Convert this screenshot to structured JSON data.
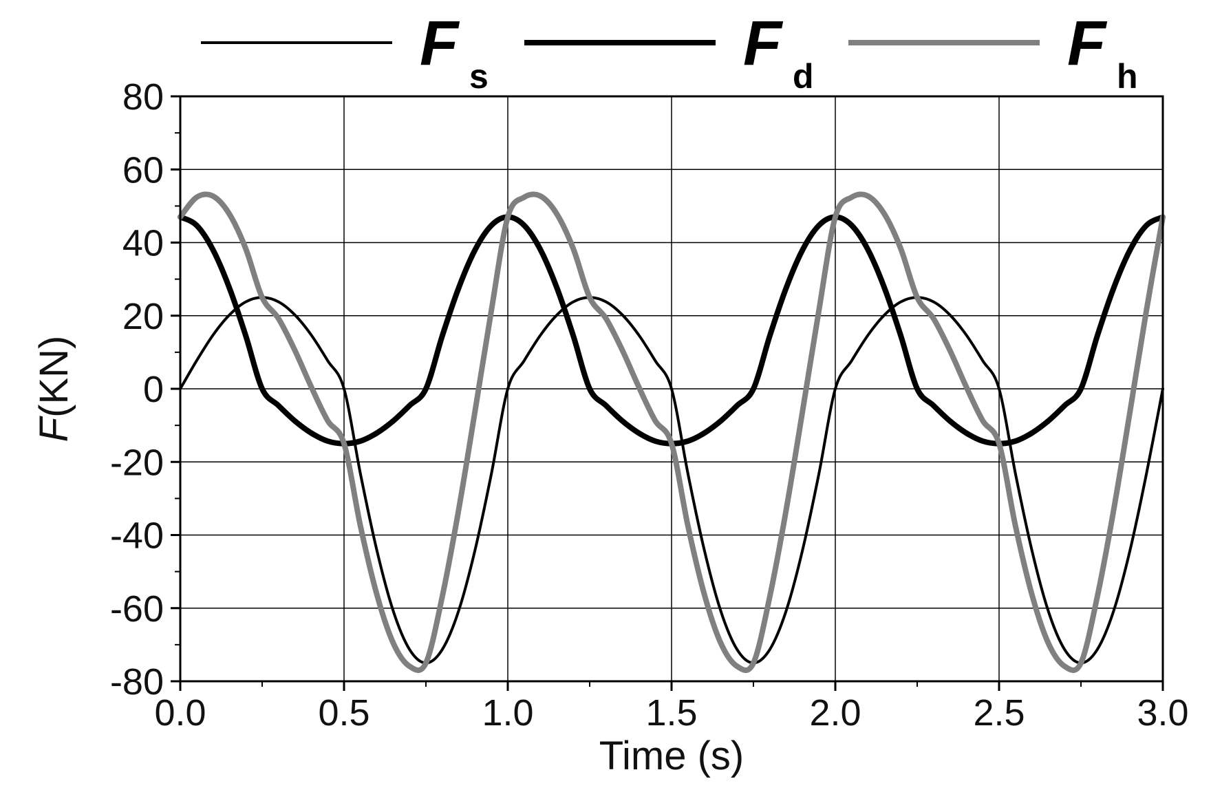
{
  "chart_data": {
    "type": "line",
    "xlabel": "Time (s)",
    "ylabel_symbol": "F",
    "ylabel_unit": "(KN)",
    "xlim": [
      0,
      3
    ],
    "ylim": [
      -80,
      80
    ],
    "xticks": [
      0.0,
      0.5,
      1.0,
      1.5,
      2.0,
      2.5,
      3.0
    ],
    "xtick_labels": [
      "0.0",
      "0.5",
      "1.0",
      "1.5",
      "2.0",
      "2.5",
      "3.0"
    ],
    "yticks": [
      -80,
      -60,
      -40,
      -20,
      0,
      20,
      40,
      60,
      80
    ],
    "ytick_labels": [
      "-80",
      "-60",
      "-40",
      "-20",
      "0",
      "20",
      "40",
      "60",
      "80"
    ],
    "grid": true,
    "legend_position": "top",
    "series": [
      {
        "legend_main": "F",
        "legend_sub": "s",
        "color": "#000000",
        "weight": "thin",
        "x": [
          0.0,
          0.05,
          0.1,
          0.15,
          0.2,
          0.25,
          0.3,
          0.35,
          0.4,
          0.45,
          0.5,
          0.55,
          0.6,
          0.65,
          0.7,
          0.75,
          0.8,
          0.85,
          0.9,
          0.95,
          1.0,
          1.05,
          1.1,
          1.15,
          1.2,
          1.25,
          1.3,
          1.35,
          1.4,
          1.45,
          1.5,
          1.55,
          1.6,
          1.65,
          1.7,
          1.75,
          1.8,
          1.85,
          1.9,
          1.95,
          2.0,
          2.05,
          2.1,
          2.15,
          2.2,
          2.25,
          2.3,
          2.35,
          2.4,
          2.45,
          2.5,
          2.55,
          2.6,
          2.65,
          2.7,
          2.75,
          2.8,
          2.85,
          2.9,
          2.95,
          3.0
        ],
        "y": [
          0,
          7.7,
          14.7,
          20.2,
          23.8,
          25,
          23.8,
          20.2,
          14.7,
          7.7,
          0,
          -23.2,
          -44.1,
          -60.7,
          -71.3,
          -75,
          -71.3,
          -60.7,
          -44.1,
          -23.2,
          0,
          7.7,
          14.7,
          20.2,
          23.8,
          25,
          23.8,
          20.2,
          14.7,
          7.7,
          0,
          -23.2,
          -44.1,
          -60.7,
          -71.3,
          -75,
          -71.3,
          -60.7,
          -44.1,
          -23.2,
          0,
          7.7,
          14.7,
          20.2,
          23.8,
          25,
          23.8,
          20.2,
          14.7,
          7.7,
          0,
          -23.2,
          -44.1,
          -60.7,
          -71.3,
          -75,
          -71.3,
          -60.7,
          -44.1,
          -23.2,
          0
        ]
      },
      {
        "legend_main": "F",
        "legend_sub": "d",
        "color": "#000000",
        "weight": "thick",
        "x": [
          0.0,
          0.05,
          0.1,
          0.15,
          0.2,
          0.25,
          0.3,
          0.35,
          0.4,
          0.45,
          0.5,
          0.55,
          0.6,
          0.65,
          0.7,
          0.75,
          0.8,
          0.85,
          0.9,
          0.95,
          1.0,
          1.05,
          1.1,
          1.15,
          1.2,
          1.25,
          1.3,
          1.35,
          1.4,
          1.45,
          1.5,
          1.55,
          1.6,
          1.65,
          1.7,
          1.75,
          1.8,
          1.85,
          1.9,
          1.95,
          2.0,
          2.05,
          2.1,
          2.15,
          2.2,
          2.25,
          2.3,
          2.35,
          2.4,
          2.45,
          2.5,
          2.55,
          2.6,
          2.65,
          2.7,
          2.75,
          2.8,
          2.85,
          2.9,
          2.95,
          3.0
        ],
        "y": [
          47,
          44.7,
          38,
          27.6,
          14.5,
          0,
          -4.6,
          -8.8,
          -12.1,
          -14.3,
          -15,
          -14.3,
          -12.1,
          -8.8,
          -4.6,
          0,
          14.5,
          27.6,
          38,
          44.7,
          47,
          44.7,
          38,
          27.6,
          14.5,
          0,
          -4.6,
          -8.8,
          -12.1,
          -14.3,
          -15,
          -14.3,
          -12.1,
          -8.8,
          -4.6,
          0,
          14.5,
          27.6,
          38,
          44.7,
          47,
          44.7,
          38,
          27.6,
          14.5,
          0,
          -4.6,
          -8.8,
          -12.1,
          -14.3,
          -15,
          -14.3,
          -12.1,
          -8.8,
          -4.6,
          0,
          14.5,
          27.6,
          38,
          44.7,
          47
        ]
      },
      {
        "legend_main": "F",
        "legend_sub": "h",
        "color": "#808080",
        "weight": "thick",
        "x": [
          0.0,
          0.05,
          0.1,
          0.15,
          0.2,
          0.25,
          0.3,
          0.35,
          0.4,
          0.45,
          0.5,
          0.55,
          0.6,
          0.65,
          0.7,
          0.75,
          0.8,
          0.85,
          0.9,
          0.95,
          1.0,
          1.05,
          1.1,
          1.15,
          1.2,
          1.25,
          1.3,
          1.35,
          1.4,
          1.45,
          1.5,
          1.55,
          1.6,
          1.65,
          1.7,
          1.75,
          1.8,
          1.85,
          1.9,
          1.95,
          2.0,
          2.05,
          2.1,
          2.15,
          2.2,
          2.25,
          2.3,
          2.35,
          2.4,
          2.45,
          2.5,
          2.55,
          2.6,
          2.65,
          2.7,
          2.75,
          2.8,
          2.85,
          2.9,
          2.95,
          3.0
        ],
        "y": [
          47,
          52.4,
          52.7,
          47.8,
          38.3,
          25,
          19.2,
          10.5,
          0.5,
          -8.7,
          -15,
          -37.5,
          -56.2,
          -69.5,
          -75.9,
          -75,
          -56.8,
          -33.1,
          -6.1,
          21.5,
          47,
          52.4,
          52.7,
          47.8,
          38.3,
          25,
          19.2,
          10.5,
          0.5,
          -8.7,
          -15,
          -37.5,
          -56.2,
          -69.5,
          -75.9,
          -75,
          -56.8,
          -33.1,
          -6.1,
          21.5,
          47,
          52.4,
          52.7,
          47.8,
          38.3,
          25,
          19.2,
          10.5,
          0.5,
          -8.7,
          -15,
          -37.5,
          -56.2,
          -69.5,
          -75.9,
          -75,
          -56.8,
          -33.1,
          -6.1,
          21.5,
          47
        ]
      }
    ]
  }
}
